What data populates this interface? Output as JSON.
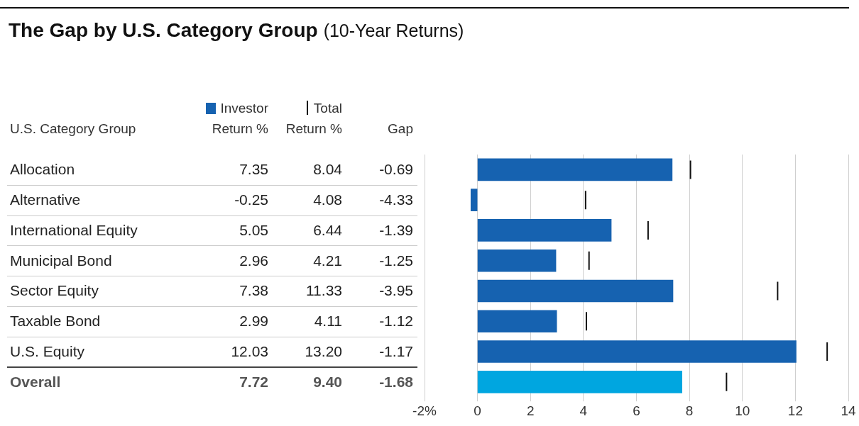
{
  "chart_data": {
    "type": "bar",
    "orientation": "horizontal",
    "title": "The Gap by U.S. Category Group",
    "subtitle": "(10-Year Returns)",
    "ylabel": "U.S. Category Group",
    "categories": [
      "Allocation",
      "Alternative",
      "International Equity",
      "Municipal Bond",
      "Sector Equity",
      "Taxable Bond",
      "U.S. Equity",
      "Overall"
    ],
    "series": [
      {
        "name": "Investor Return %",
        "type": "bar",
        "color": "#1662b0",
        "colors": [
          "#1662b0",
          "#1662b0",
          "#1662b0",
          "#1662b0",
          "#1662b0",
          "#1662b0",
          "#1662b0",
          "#00a6e0"
        ],
        "values": [
          7.35,
          -0.25,
          5.05,
          2.96,
          7.38,
          2.99,
          12.03,
          7.72
        ]
      },
      {
        "name": "Total Return %",
        "type": "scatter",
        "marker": "vline",
        "color": "#111111",
        "values": [
          8.04,
          4.08,
          6.44,
          4.21,
          11.33,
          4.11,
          13.2,
          9.4
        ],
        "value_labels": [
          "8.04",
          "4.08",
          "6.44",
          "4.21",
          "11.33",
          "4.11",
          "13.20",
          "9.40"
        ]
      }
    ],
    "gap": {
      "name": "Gap",
      "values": [
        -0.69,
        -4.33,
        -1.39,
        -1.25,
        -3.95,
        -1.12,
        -1.17,
        -1.68
      ]
    },
    "xlim": [
      -2,
      14
    ],
    "xticks": [
      {
        "value": -2,
        "label": "-2%"
      },
      0,
      2,
      4,
      6,
      8,
      10,
      12,
      14
    ],
    "grid": true,
    "tick_labels": "x"
  }
}
